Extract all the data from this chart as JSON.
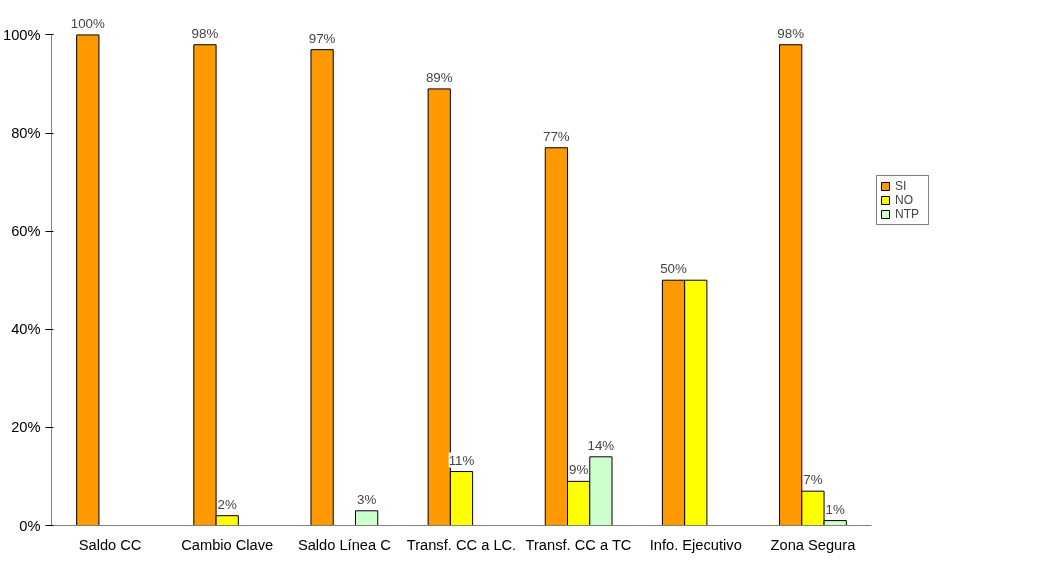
{
  "chart_data": {
    "type": "bar",
    "categories": [
      "Saldo CC",
      "Cambio Clave",
      "Saldo Línea C",
      "Transf. CC a LC.",
      "Transf. CC a TC",
      "Info. Ejecutivo",
      "Zona Segura"
    ],
    "series": [
      {
        "name": "SI",
        "color": "#ff9900",
        "values": [
          100,
          98,
          97,
          89,
          77,
          50,
          98
        ],
        "value_labels": [
          "100%",
          "98%",
          "97%",
          "89%",
          "77%",
          "50%",
          "98%"
        ]
      },
      {
        "name": "NO",
        "color": "#ffff00",
        "values": [
          null,
          2,
          null,
          11,
          9,
          50,
          7
        ],
        "value_labels": [
          null,
          "2%",
          null,
          "11%",
          "9%",
          null,
          "7%"
        ]
      },
      {
        "name": "NTP",
        "color": "#ccffcc",
        "values": [
          null,
          null,
          3,
          null,
          14,
          null,
          1
        ],
        "value_labels": [
          null,
          null,
          "3%",
          null,
          "14%",
          null,
          "1%"
        ]
      }
    ],
    "ylim": [
      0,
      100
    ],
    "yticks": [
      {
        "value": 0,
        "label": "0%"
      },
      {
        "value": 20,
        "label": "20%"
      },
      {
        "value": 40,
        "label": "40%"
      },
      {
        "value": 60,
        "label": "60%"
      },
      {
        "value": 80,
        "label": "80%"
      },
      {
        "value": 100,
        "label": "100%"
      }
    ],
    "legend": "right"
  }
}
